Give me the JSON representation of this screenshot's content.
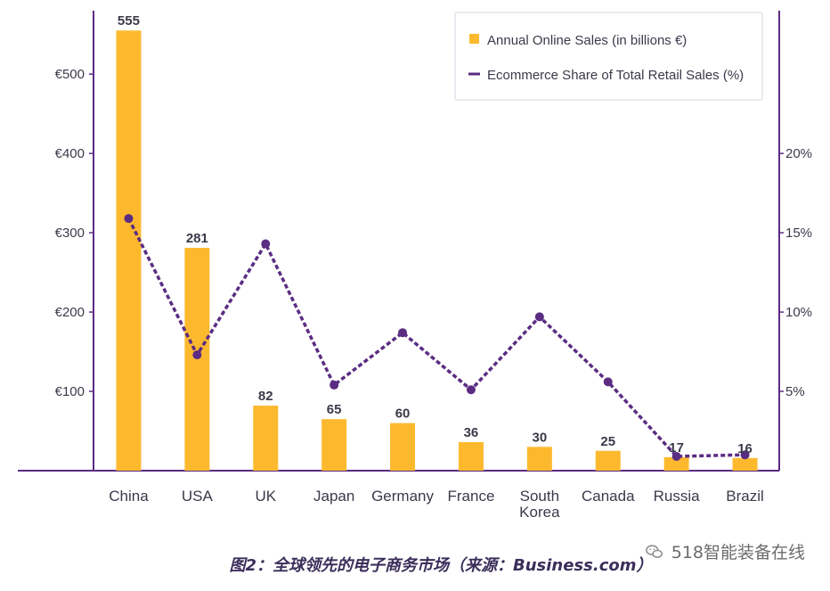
{
  "colors": {
    "bar": "#FDB92E",
    "line": "#5B2C83",
    "axis": "#5B2C83",
    "text": "#3A3A4A",
    "legend_border": "#E4E4EC"
  },
  "chart_data": {
    "type": "bar",
    "categories": [
      "China",
      "USA",
      "UK",
      "Japan",
      "Germany",
      "France",
      "South Korea",
      "Canada",
      "Russia",
      "Brazil"
    ],
    "category_labels": [
      [
        "China"
      ],
      [
        "USA"
      ],
      [
        "UK"
      ],
      [
        "Japan"
      ],
      [
        "Germany"
      ],
      [
        "France"
      ],
      [
        "South",
        "Korea"
      ],
      [
        "Canada"
      ],
      [
        "Russia"
      ],
      [
        "Brazil"
      ]
    ],
    "series": [
      {
        "name": "Annual Online Sales (in billions €)",
        "kind": "bar",
        "axis": "left",
        "values": [
          555,
          281,
          82,
          65,
          60,
          36,
          30,
          25,
          17,
          16
        ],
        "data_labels": [
          "555",
          "281",
          "82",
          "65",
          "60",
          "36",
          "30",
          "25",
          "17",
          "16"
        ]
      },
      {
        "name": "Ecommerce Share of Total Retail Sales (%)",
        "kind": "line",
        "style": "dashed",
        "axis": "right",
        "values": [
          15.9,
          7.3,
          14.3,
          5.4,
          8.7,
          5.1,
          9.7,
          5.6,
          0.9,
          1.0
        ]
      }
    ],
    "y_left": {
      "lim": [
        0,
        580
      ],
      "ticks": [
        100,
        200,
        300,
        400,
        500
      ],
      "tick_labels": [
        "€100",
        "€200",
        "€300",
        "€400",
        "€500"
      ]
    },
    "y_right": {
      "lim": [
        0,
        29
      ],
      "ticks": [
        5,
        10,
        15,
        20
      ],
      "tick_labels": [
        "5%",
        "10%",
        "15%",
        "20%"
      ]
    },
    "legend_position": "top-right",
    "grid": false
  },
  "caption": "图2：全球领先的电子商务市场（来源：Business.com）",
  "watermark": {
    "text": "518智能装备在线",
    "icon": "wechat-icon"
  }
}
